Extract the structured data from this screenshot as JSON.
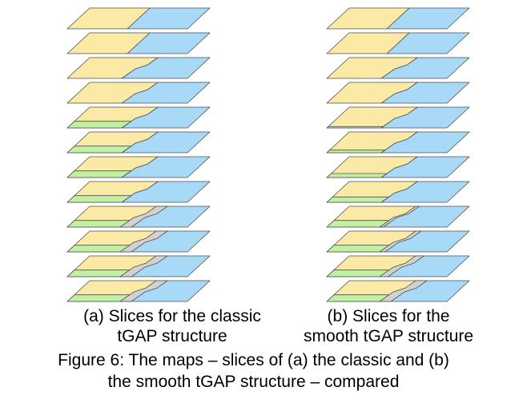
{
  "colors": {
    "yellow": "#fbe9a6",
    "blue": "#a8daf7",
    "green": "#c2f0a3",
    "gray": "#d2d2d2",
    "outline": "#4d4d4d"
  },
  "stacks": [
    {
      "id": "classic",
      "caption_line1": "(a) Slices for the classic",
      "caption_line2": "tGAP structure",
      "slices": [
        {
          "green": 0,
          "gray": 0,
          "boundary": "straight"
        },
        {
          "green": 0,
          "gray": 0,
          "boundary": "straight"
        },
        {
          "green": 0,
          "gray": 0,
          "boundary": "bent"
        },
        {
          "green": 0,
          "gray": 0,
          "boundary": "bent"
        },
        {
          "green": 1,
          "gray": 0,
          "boundary": "bent"
        },
        {
          "green": 1,
          "gray": 0,
          "boundary": "bent"
        },
        {
          "green": 1,
          "gray": 0,
          "boundary": "bent"
        },
        {
          "green": 1,
          "gray": 0,
          "boundary": "bent"
        },
        {
          "green": 1,
          "gray": 1,
          "boundary": "bent"
        },
        {
          "green": 1,
          "gray": 1,
          "boundary": "bent"
        },
        {
          "green": 1,
          "gray": 1,
          "boundary": "bent"
        },
        {
          "green": 1,
          "gray": 1,
          "boundary": "bent"
        }
      ]
    },
    {
      "id": "smooth",
      "caption_line1": "(b) Slices for the",
      "caption_line2": "smooth tGAP structure",
      "slices": [
        {
          "green": 0,
          "gray": 0,
          "boundary": "straight"
        },
        {
          "green": 0,
          "gray": 0,
          "boundary": "straight"
        },
        {
          "green": 0,
          "gray": 0,
          "boundary": "bent"
        },
        {
          "green": 0,
          "gray": 0,
          "boundary": "bent"
        },
        {
          "green": 0.2,
          "gray": 0,
          "boundary": "bent"
        },
        {
          "green": 0.4,
          "gray": 0,
          "boundary": "bent"
        },
        {
          "green": 0.6,
          "gray": 0,
          "boundary": "bent"
        },
        {
          "green": 0.8,
          "gray": 0,
          "boundary": "bent"
        },
        {
          "green": 1,
          "gray": 0.2,
          "boundary": "bent"
        },
        {
          "green": 1,
          "gray": 0.4,
          "boundary": "bent"
        },
        {
          "green": 1,
          "gray": 0.7,
          "boundary": "bent"
        },
        {
          "green": 1,
          "gray": 1,
          "boundary": "bent"
        }
      ]
    }
  ],
  "figure_caption_line1": "Figure 6: The maps – slices of (a) the classic and (b)",
  "figure_caption_line2": "the smooth tGAP structure – compared"
}
